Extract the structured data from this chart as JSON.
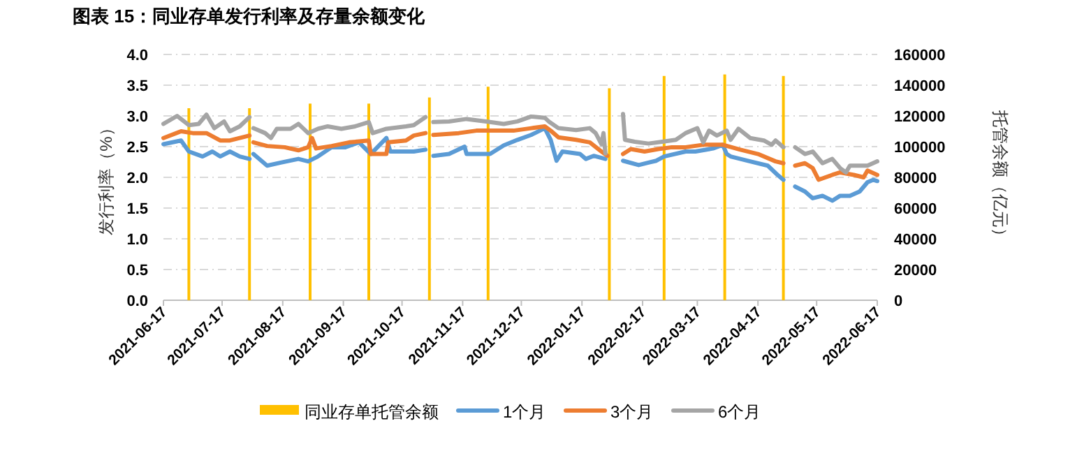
{
  "chart_data": {
    "type": "line",
    "title": "图表 15：同业存单发行利率及存量余额变化",
    "ylabel": "发行利率（%）",
    "y2label": "托管余额（亿元）",
    "xlim": [
      "2021-06-17",
      "2022-06-17"
    ],
    "xticks": [
      "2021-06-17",
      "2021-07-17",
      "2021-08-17",
      "2021-09-17",
      "2021-10-17",
      "2021-11-17",
      "2021-12-17",
      "2022-01-17",
      "2022-02-17",
      "2022-03-17",
      "2022-04-17",
      "2022-05-17",
      "2022-06-17"
    ],
    "ylim": [
      0,
      4
    ],
    "yticks": [
      {
        "value": 0,
        "label": "0.0"
      },
      {
        "value": 0.5,
        "label": "0.5"
      },
      {
        "value": 1,
        "label": "1.0"
      },
      {
        "value": 1.5,
        "label": "1.5"
      },
      {
        "value": 2,
        "label": "2.0"
      },
      {
        "value": 2.5,
        "label": "2.5"
      },
      {
        "value": 3,
        "label": "3.0"
      },
      {
        "value": 3.5,
        "label": "3.5"
      },
      {
        "value": 4,
        "label": "4.0"
      }
    ],
    "y2lim": [
      0,
      160000
    ],
    "y2ticks": [
      0,
      20000,
      40000,
      60000,
      80000,
      100000,
      120000,
      140000,
      160000
    ],
    "grid": "y",
    "legend": "bottom",
    "series": [
      {
        "name": "同业存单托管余额",
        "type": "bar",
        "axis": "y2",
        "color": "#ffc000",
        "x": [
          "2021-06-30",
          "2021-07-31",
          "2021-08-31",
          "2021-09-30",
          "2021-10-31",
          "2021-11-30",
          "2022-01-31",
          "2022-02-28",
          "2022-03-31",
          "2022-04-30"
        ],
        "values": [
          125000,
          125000,
          128000,
          128000,
          132000,
          139000,
          138000,
          146000,
          147000,
          146000
        ]
      },
      {
        "name": "1个月",
        "color": "#5b9bd5",
        "x": [
          "2021-06-17",
          "2021-06-26",
          "2021-06-30",
          "2021-07-07",
          "2021-07-12",
          "2021-07-16",
          "2021-07-21",
          "2021-07-26",
          "2021-07-31",
          "2021-08-01",
          "2021-08-02",
          "2021-08-09",
          "2021-08-16",
          "2021-08-25",
          "2021-08-30",
          "2021-09-04",
          "2021-09-11",
          "2021-09-18",
          "2021-09-25",
          "2021-10-01",
          "2021-10-09",
          "2021-10-11",
          "2021-10-23",
          "2021-10-29",
          "2021-10-31",
          "2021-11-02",
          "2021-11-10",
          "2021-11-18",
          "2021-11-19",
          "2021-12-01",
          "2021-12-08",
          "2021-12-15",
          "2021-12-22",
          "2021-12-29",
          "2022-01-01",
          "2022-01-04",
          "2022-01-07",
          "2022-01-16",
          "2022-01-19",
          "2022-01-23",
          "2022-01-29",
          "2022-02-02",
          "2022-02-07",
          "2022-02-15",
          "2022-02-20",
          "2022-02-24",
          "2022-02-28",
          "2022-03-11",
          "2022-03-16",
          "2022-03-25",
          "2022-03-30",
          "2022-04-01",
          "2022-04-03",
          "2022-04-13",
          "2022-04-22",
          "2022-04-27",
          "2022-04-30",
          "2022-05-03",
          "2022-05-06",
          "2022-05-11",
          "2022-05-15",
          "2022-05-20",
          "2022-05-25",
          "2022-05-29",
          "2022-06-03",
          "2022-06-08",
          "2022-06-12",
          "2022-06-15",
          "2022-06-17"
        ],
        "values": [
          2.54,
          2.6,
          2.42,
          2.34,
          2.42,
          2.34,
          2.42,
          2.34,
          2.3,
          null,
          2.38,
          2.19,
          2.24,
          2.3,
          2.26,
          2.34,
          2.49,
          2.49,
          2.57,
          2.38,
          2.64,
          2.42,
          2.42,
          2.45,
          null,
          2.35,
          2.38,
          2.5,
          2.38,
          2.38,
          2.52,
          2.61,
          2.69,
          2.8,
          2.61,
          2.27,
          2.42,
          2.38,
          2.3,
          2.35,
          2.3,
          null,
          2.27,
          2.2,
          2.24,
          2.27,
          2.34,
          2.42,
          2.42,
          2.47,
          2.53,
          2.38,
          2.34,
          2.26,
          2.19,
          2.04,
          1.96,
          null,
          1.85,
          1.77,
          1.66,
          1.7,
          1.62,
          1.7,
          1.7,
          1.77,
          1.92,
          1.96,
          1.94
        ]
      },
      {
        "name": "3个月",
        "color": "#ed7d31",
        "x": [
          "2021-06-17",
          "2021-06-26",
          "2021-07-02",
          "2021-07-09",
          "2021-07-16",
          "2021-07-21",
          "2021-07-26",
          "2021-07-31",
          "2021-08-01",
          "2021-08-02",
          "2021-08-09",
          "2021-08-18",
          "2021-08-25",
          "2021-08-30",
          "2021-09-01",
          "2021-09-03",
          "2021-09-11",
          "2021-09-20",
          "2021-09-30",
          "2021-10-01",
          "2021-10-09",
          "2021-10-10",
          "2021-10-19",
          "2021-10-23",
          "2021-10-29",
          "2021-10-31",
          "2021-11-02",
          "2021-11-15",
          "2021-11-24",
          "2021-12-04",
          "2021-12-13",
          "2021-12-22",
          "2021-12-29",
          "2022-01-01",
          "2022-01-05",
          "2022-01-14",
          "2022-01-21",
          "2022-01-27",
          "2022-01-30",
          "2022-02-02",
          "2022-02-07",
          "2022-02-11",
          "2022-02-18",
          "2022-02-25",
          "2022-03-04",
          "2022-03-11",
          "2022-03-20",
          "2022-03-30",
          "2022-04-08",
          "2022-04-17",
          "2022-04-26",
          "2022-04-30",
          "2022-05-03",
          "2022-05-06",
          "2022-05-11",
          "2022-05-15",
          "2022-05-18",
          "2022-05-25",
          "2022-05-29",
          "2022-06-05",
          "2022-06-10",
          "2022-06-12",
          "2022-06-17"
        ],
        "values": [
          2.64,
          2.75,
          2.72,
          2.72,
          2.6,
          2.6,
          2.64,
          2.68,
          null,
          2.57,
          2.51,
          2.49,
          2.44,
          2.49,
          2.64,
          2.47,
          2.51,
          2.57,
          2.6,
          2.38,
          2.38,
          2.57,
          2.6,
          2.68,
          2.72,
          null,
          2.69,
          2.72,
          2.76,
          2.76,
          2.76,
          2.8,
          2.83,
          2.76,
          2.65,
          2.61,
          2.57,
          2.42,
          2.35,
          null,
          2.38,
          2.46,
          2.42,
          2.46,
          2.49,
          2.49,
          2.53,
          2.53,
          2.45,
          2.38,
          2.26,
          2.23,
          null,
          2.19,
          2.23,
          2.15,
          1.96,
          2.04,
          2.08,
          2.04,
          2.0,
          2.11,
          2.04
        ]
      },
      {
        "name": "6个月",
        "color": "#a5a5a5",
        "x": [
          "2021-06-17",
          "2021-06-24",
          "2021-06-30",
          "2021-07-05",
          "2021-07-09",
          "2021-07-13",
          "2021-07-18",
          "2021-07-21",
          "2021-07-26",
          "2021-07-31",
          "2021-08-01",
          "2021-08-02",
          "2021-08-08",
          "2021-08-11",
          "2021-08-14",
          "2021-08-21",
          "2021-08-25",
          "2021-08-30",
          "2021-09-04",
          "2021-09-09",
          "2021-09-16",
          "2021-09-23",
          "2021-09-30",
          "2021-10-02",
          "2021-10-09",
          "2021-10-19",
          "2021-10-23",
          "2021-10-29",
          "2021-10-31",
          "2021-11-02",
          "2021-11-10",
          "2021-11-19",
          "2021-11-29",
          "2021-12-08",
          "2021-12-15",
          "2021-12-22",
          "2021-12-29",
          "2021-12-31",
          "2022-01-05",
          "2022-01-14",
          "2022-01-21",
          "2022-01-24",
          "2022-01-27",
          "2022-01-28",
          "2022-01-29",
          "2022-02-02",
          "2022-02-07",
          "2022-02-08",
          "2022-02-13",
          "2022-02-20",
          "2022-02-27",
          "2022-03-06",
          "2022-03-11",
          "2022-03-17",
          "2022-03-20",
          "2022-03-23",
          "2022-03-27",
          "2022-04-01",
          "2022-04-03",
          "2022-04-07",
          "2022-04-13",
          "2022-04-20",
          "2022-04-24",
          "2022-04-26",
          "2022-04-30",
          "2022-05-03",
          "2022-05-06",
          "2022-05-11",
          "2022-05-15",
          "2022-05-20",
          "2022-05-25",
          "2022-05-29",
          "2022-06-01",
          "2022-06-03",
          "2022-06-08",
          "2022-06-12",
          "2022-06-17"
        ],
        "values": [
          2.87,
          3.0,
          2.85,
          2.87,
          3.02,
          2.8,
          2.91,
          2.75,
          2.83,
          2.98,
          null,
          2.8,
          2.72,
          2.64,
          2.79,
          2.79,
          2.87,
          2.72,
          2.79,
          2.83,
          2.79,
          2.83,
          2.9,
          2.72,
          2.79,
          2.83,
          2.85,
          2.98,
          null,
          2.9,
          2.91,
          2.95,
          2.91,
          2.87,
          2.91,
          2.99,
          2.97,
          2.91,
          2.8,
          2.77,
          2.8,
          2.72,
          2.54,
          2.72,
          2.39,
          null,
          3.03,
          2.61,
          2.58,
          2.55,
          2.58,
          2.61,
          2.72,
          2.8,
          2.57,
          2.76,
          2.68,
          2.76,
          2.61,
          2.79,
          2.64,
          2.6,
          2.53,
          2.6,
          2.49,
          null,
          2.49,
          2.38,
          2.42,
          2.23,
          2.3,
          2.15,
          2.08,
          2.19,
          2.19,
          2.19,
          2.26
        ]
      }
    ]
  }
}
